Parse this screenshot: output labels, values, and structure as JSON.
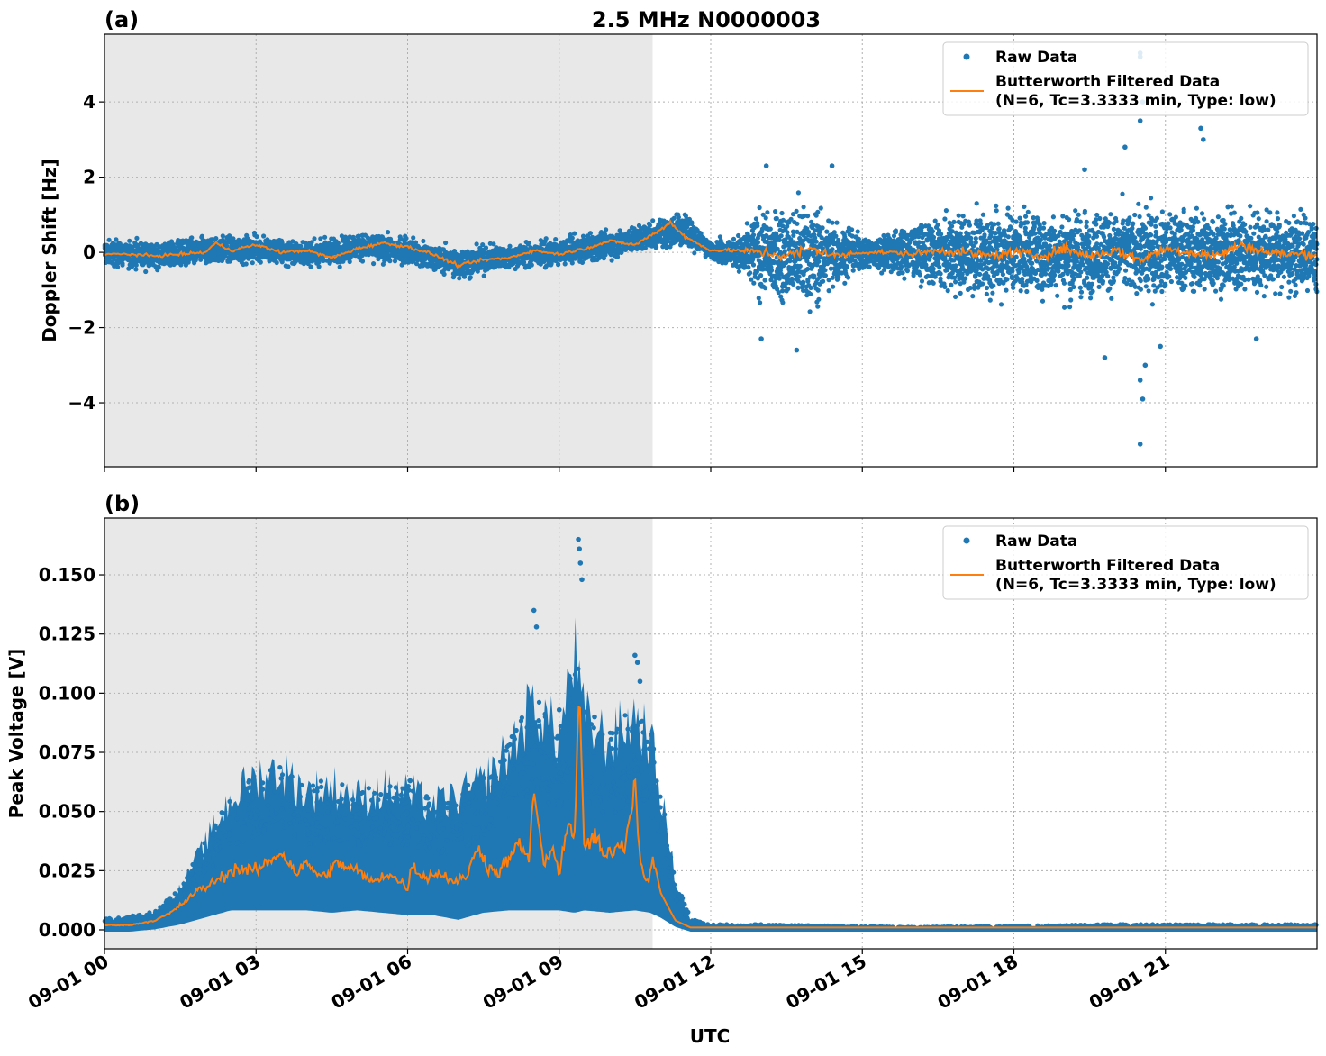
{
  "figure_title": "2.5 MHz N0000003",
  "xlabel": "UTC",
  "legend": {
    "raw": "Raw Data",
    "filtered_line1": "Butterworth Filtered Data",
    "filtered_line2": "(N=6, Tc=3.3333 min, Type: low)"
  },
  "colors": {
    "raw": "#1f77b4",
    "filtered": "#ff7f0e",
    "night_shade": "#e8e8e8",
    "grid": "#b0b0b0"
  },
  "chart_data": [
    {
      "type": "scatter",
      "panel_label": "(a)",
      "title": "2.5 MHz N0000003",
      "xlabel": "UTC",
      "ylabel": "Doppler Shift [Hz]",
      "xlim_hours": [
        0,
        24
      ],
      "ylim": [
        -5.7,
        5.8
      ],
      "x_ticks": [
        {
          "hour": 0,
          "label": "09-01 00"
        },
        {
          "hour": 3,
          "label": "09-01 03"
        },
        {
          "hour": 6,
          "label": "09-01 06"
        },
        {
          "hour": 9,
          "label": "09-01 09"
        },
        {
          "hour": 12,
          "label": "09-01 12"
        },
        {
          "hour": 15,
          "label": "09-01 15"
        },
        {
          "hour": 18,
          "label": "09-01 18"
        },
        {
          "hour": 21,
          "label": "09-01 21"
        }
      ],
      "y_ticks": [
        {
          "value": -4,
          "label": "−4"
        },
        {
          "value": -2,
          "label": "−2"
        },
        {
          "value": 0,
          "label": "0"
        },
        {
          "value": 2,
          "label": "2"
        },
        {
          "value": 4,
          "label": "4"
        }
      ],
      "shaded_hours": [
        0,
        10.85
      ],
      "grid": true,
      "legend_position": "top-right",
      "series": [
        {
          "name": "Raw Data",
          "style": "points",
          "hours": [
            0,
            1,
            2,
            3,
            4,
            5,
            6,
            7,
            8,
            9,
            10,
            11,
            11.5,
            12,
            12.5,
            13,
            14,
            15,
            16,
            17,
            18,
            19,
            20,
            21,
            22,
            23,
            24
          ],
          "center": [
            0,
            -0.1,
            0.05,
            0.1,
            -0.05,
            0.15,
            0.05,
            -0.3,
            -0.1,
            0,
            0.2,
            0.5,
            0.6,
            0.05,
            0,
            -0.1,
            -0.05,
            0,
            0,
            -0.05,
            0,
            -0.05,
            0,
            0,
            0,
            0,
            -0.1
          ],
          "spread": [
            0.5,
            0.45,
            0.5,
            0.5,
            0.45,
            0.5,
            0.5,
            0.55,
            0.45,
            0.45,
            0.5,
            0.55,
            0.7,
            0.3,
            0.6,
            1.6,
            1.9,
            0.6,
            1.0,
            1.5,
            1.6,
            1.6,
            1.6,
            1.6,
            1.6,
            1.5,
            1.5
          ],
          "outliers": [
            {
              "hour": 20.5,
              "value": 5.3
            },
            {
              "hour": 20.5,
              "value": 5.2
            },
            {
              "hour": 20.55,
              "value": 4.0
            },
            {
              "hour": 20.5,
              "value": 3.5
            },
            {
              "hour": 20.55,
              "value": -3.9
            },
            {
              "hour": 20.5,
              "value": -5.1
            },
            {
              "hour": 20.5,
              "value": -3.4
            },
            {
              "hour": 20.6,
              "value": -3.0
            },
            {
              "hour": 21.7,
              "value": 3.3
            },
            {
              "hour": 21.75,
              "value": 3.0
            },
            {
              "hour": 20.2,
              "value": 2.8
            },
            {
              "hour": 13.1,
              "value": 2.3
            },
            {
              "hour": 14.4,
              "value": 2.3
            },
            {
              "hour": 13.7,
              "value": -2.6
            },
            {
              "hour": 20.9,
              "value": -2.5
            },
            {
              "hour": 22.8,
              "value": -2.3
            },
            {
              "hour": 19.8,
              "value": -2.8
            },
            {
              "hour": 13.0,
              "value": -2.3
            },
            {
              "hour": 19.4,
              "value": 2.2
            }
          ]
        },
        {
          "name": "Butterworth Filtered Data (N=6, Tc=3.3333 min, Type: low)",
          "style": "line",
          "hours": [
            0,
            0.5,
            1,
            1.5,
            2,
            2.2,
            2.5,
            3,
            3.5,
            4,
            4.5,
            5,
            5.5,
            6,
            6.5,
            7,
            7.5,
            8,
            8.5,
            9,
            9.5,
            10,
            10.5,
            11,
            11.2,
            11.5,
            12,
            12.5,
            13,
            13.5,
            14,
            14.5,
            15,
            15.5,
            16,
            16.5,
            17,
            17.5,
            18,
            18.5,
            19,
            19.5,
            20,
            20.5,
            21,
            21.5,
            22,
            22.5,
            23,
            23.5,
            24
          ],
          "values": [
            -0.05,
            -0.05,
            -0.1,
            -0.05,
            0,
            0.25,
            0.05,
            0.2,
            0,
            0.05,
            -0.15,
            0.1,
            0.25,
            0.15,
            -0.05,
            -0.35,
            -0.2,
            -0.15,
            0.05,
            -0.05,
            0.1,
            0.3,
            0.2,
            0.6,
            0.8,
            0.4,
            0.05,
            0.05,
            0,
            -0.1,
            0.1,
            -0.1,
            0,
            0,
            -0.05,
            0.05,
            0,
            -0.1,
            0,
            -0.1,
            0.1,
            -0.1,
            0.05,
            -0.2,
            0.1,
            0,
            -0.1,
            0.2,
            0,
            -0.05,
            -0.05
          ]
        }
      ]
    },
    {
      "type": "scatter",
      "panel_label": "(b)",
      "title": "",
      "xlabel": "UTC",
      "ylabel": "Peak Voltage [V]",
      "xlim_hours": [
        0,
        24
      ],
      "ylim": [
        -0.008,
        0.174
      ],
      "x_ticks": [
        {
          "hour": 0,
          "label": "09-01 00"
        },
        {
          "hour": 3,
          "label": "09-01 03"
        },
        {
          "hour": 6,
          "label": "09-01 06"
        },
        {
          "hour": 9,
          "label": "09-01 09"
        },
        {
          "hour": 12,
          "label": "09-01 12"
        },
        {
          "hour": 15,
          "label": "09-01 15"
        },
        {
          "hour": 18,
          "label": "09-01 18"
        },
        {
          "hour": 21,
          "label": "09-01 21"
        }
      ],
      "y_ticks": [
        {
          "value": 0.0,
          "label": "0.000"
        },
        {
          "value": 0.025,
          "label": "0.025"
        },
        {
          "value": 0.05,
          "label": "0.050"
        },
        {
          "value": 0.075,
          "label": "0.075"
        },
        {
          "value": 0.1,
          "label": "0.100"
        },
        {
          "value": 0.125,
          "label": "0.125"
        },
        {
          "value": 0.15,
          "label": "0.150"
        }
      ],
      "shaded_hours": [
        0,
        10.85
      ],
      "grid": true,
      "legend_position": "top-right",
      "series": [
        {
          "name": "Raw Data",
          "style": "band",
          "hours": [
            0,
            0.5,
            1,
            1.5,
            2,
            2.5,
            3,
            3.5,
            4,
            4.5,
            5,
            5.5,
            6,
            6.5,
            7,
            7.5,
            8,
            8.5,
            9,
            9.3,
            9.5,
            10,
            10.5,
            10.8,
            11,
            11.3,
            11.6,
            12,
            13,
            16,
            20,
            24
          ],
          "low": [
            0,
            0,
            0.001,
            0.003,
            0.006,
            0.009,
            0.009,
            0.009,
            0.009,
            0.008,
            0.009,
            0.008,
            0.007,
            0.007,
            0.005,
            0.008,
            0.009,
            0.009,
            0.009,
            0.008,
            0.009,
            0.008,
            0.009,
            0.008,
            0.006,
            0.002,
            0,
            0,
            0,
            0,
            0,
            0
          ],
          "high": [
            0.004,
            0.005,
            0.007,
            0.016,
            0.034,
            0.052,
            0.06,
            0.063,
            0.054,
            0.057,
            0.052,
            0.055,
            0.054,
            0.049,
            0.052,
            0.058,
            0.07,
            0.09,
            0.075,
            0.11,
            0.083,
            0.074,
            0.085,
            0.075,
            0.055,
            0.02,
            0.004,
            0.002,
            0.002,
            0.001,
            0.002,
            0.002
          ],
          "spikes": [
            {
              "hour": 8.5,
              "value": 0.135
            },
            {
              "hour": 8.55,
              "value": 0.128
            },
            {
              "hour": 9.38,
              "value": 0.165
            },
            {
              "hour": 9.4,
              "value": 0.161
            },
            {
              "hour": 9.42,
              "value": 0.155
            },
            {
              "hour": 9.45,
              "value": 0.148
            },
            {
              "hour": 10.5,
              "value": 0.116
            },
            {
              "hour": 10.55,
              "value": 0.113
            },
            {
              "hour": 10.6,
              "value": 0.105
            },
            {
              "hour": 3.3,
              "value": 0.064
            },
            {
              "hour": 3.5,
              "value": 0.064
            },
            {
              "hour": 6.05,
              "value": 0.063
            },
            {
              "hour": 8.1,
              "value": 0.068
            },
            {
              "hour": 9.0,
              "value": 0.093
            },
            {
              "hour": 9.7,
              "value": 0.09
            }
          ]
        },
        {
          "name": "Butterworth Filtered Data (N=6, Tc=3.3333 min, Type: low)",
          "style": "line",
          "hours": [
            0,
            0.5,
            1,
            1.3,
            1.6,
            1.8,
            2,
            2.3,
            2.6,
            3,
            3.2,
            3.5,
            3.8,
            4,
            4.3,
            4.6,
            5,
            5.3,
            5.6,
            6,
            6.1,
            6.3,
            6.6,
            7,
            7.2,
            7.4,
            7.6,
            7.8,
            8,
            8.2,
            8.4,
            8.5,
            8.7,
            8.9,
            9.0,
            9.2,
            9.3,
            9.4,
            9.5,
            9.7,
            9.9,
            10.1,
            10.3,
            10.5,
            10.6,
            10.75,
            10.85,
            11.0,
            11.3,
            11.6,
            12,
            13,
            16,
            20,
            24
          ],
          "values": [
            0.002,
            0.002,
            0.004,
            0.007,
            0.012,
            0.016,
            0.018,
            0.022,
            0.026,
            0.025,
            0.028,
            0.033,
            0.024,
            0.028,
            0.022,
            0.028,
            0.025,
            0.02,
            0.024,
            0.018,
            0.028,
            0.022,
            0.024,
            0.02,
            0.024,
            0.036,
            0.026,
            0.024,
            0.03,
            0.036,
            0.03,
            0.06,
            0.026,
            0.035,
            0.024,
            0.048,
            0.036,
            0.098,
            0.034,
            0.04,
            0.03,
            0.035,
            0.036,
            0.063,
            0.03,
            0.02,
            0.03,
            0.016,
            0.004,
            0.001,
            0.001,
            0.001,
            0.001,
            0.001,
            0.001
          ]
        }
      ]
    }
  ]
}
